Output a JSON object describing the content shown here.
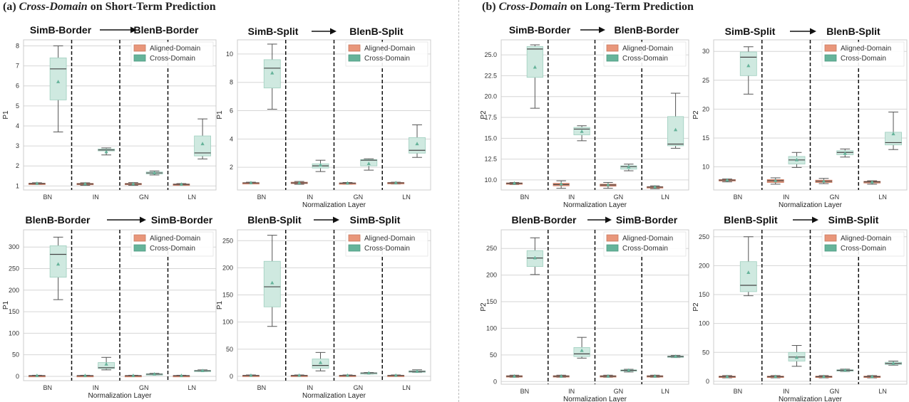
{
  "panels": [
    {
      "prefix": "(a) ",
      "emph": "Cross-Domain",
      "suffix": " on Short-Term Prediction"
    },
    {
      "prefix": "(b) ",
      "emph": "Cross-Domain",
      "suffix": " on Long-Term Prediction"
    }
  ],
  "colors": {
    "aligned": "#e8967a",
    "cross": "#66b39a",
    "cross_box": "#cfe9e0",
    "grid": "#d6d6d6",
    "axes": "#cccccc"
  },
  "chart_data": [
    {
      "id": "a1",
      "type": "box",
      "src": "SimB-Border",
      "dst": "BlenB-Border",
      "ylabel": "P1",
      "xlabel": "",
      "ylim": [
        0.8,
        8.3
      ],
      "yticks": [
        1,
        2,
        3,
        4,
        5,
        6,
        7,
        8
      ],
      "categories": [
        "BN",
        "IN",
        "GN",
        "LN"
      ],
      "series": [
        {
          "name": "Aligned-Domain",
          "boxes": [
            [
              1.08,
              1.11,
              1.12,
              1.14,
              1.16
            ],
            [
              1.03,
              1.07,
              1.1,
              1.13,
              1.16
            ],
            [
              1.03,
              1.07,
              1.1,
              1.13,
              1.17
            ],
            [
              1.03,
              1.06,
              1.08,
              1.1,
              1.12
            ]
          ],
          "means": [
            1.12,
            1.1,
            1.1,
            1.08
          ]
        },
        {
          "name": "Cross-Domain",
          "boxes": [
            [
              3.7,
              5.3,
              6.85,
              7.4,
              8.0
            ],
            [
              2.55,
              2.75,
              2.8,
              2.85,
              2.9
            ],
            [
              1.55,
              1.6,
              1.65,
              1.7,
              1.75
            ],
            [
              2.35,
              2.5,
              2.65,
              3.5,
              4.35
            ]
          ],
          "means": [
            6.2,
            2.7,
            1.65,
            3.1
          ]
        }
      ]
    },
    {
      "id": "a2",
      "type": "box",
      "src": "SimB-Split",
      "dst": "BlenB-Split",
      "ylabel": "P1",
      "xlabel": "Normalization Layer",
      "ylim": [
        0.4,
        11
      ],
      "yticks": [
        2,
        4,
        6,
        8,
        10
      ],
      "categories": [
        "BN",
        "IN",
        "GN",
        "LN"
      ],
      "series": [
        {
          "name": "Aligned-Domain",
          "boxes": [
            [
              0.85,
              0.88,
              0.9,
              0.92,
              0.95
            ],
            [
              0.8,
              0.85,
              0.9,
              0.95,
              1.0
            ],
            [
              0.8,
              0.85,
              0.88,
              0.9,
              0.93
            ],
            [
              0.82,
              0.86,
              0.9,
              0.93,
              0.95
            ]
          ],
          "means": [
            0.9,
            0.9,
            0.88,
            0.9
          ]
        },
        {
          "name": "Cross-Domain",
          "boxes": [
            [
              6.1,
              7.6,
              9.0,
              9.6,
              10.7
            ],
            [
              1.7,
              1.95,
              2.1,
              2.25,
              2.5
            ],
            [
              1.8,
              2.1,
              2.5,
              2.55,
              2.6
            ],
            [
              2.7,
              3.0,
              3.2,
              4.1,
              5.0
            ]
          ],
          "means": [
            8.65,
            2.15,
            2.25,
            3.65
          ]
        }
      ]
    },
    {
      "id": "a3",
      "type": "box",
      "src": "BlenB-Border",
      "dst": "SimB-Border",
      "ylabel": "P1",
      "xlabel": "Normalization Layer",
      "ylim": [
        -10,
        340
      ],
      "yticks": [
        0,
        50,
        100,
        150,
        200,
        250,
        300
      ],
      "categories": [
        "BN",
        "IN",
        "GN",
        "LN"
      ],
      "series": [
        {
          "name": "Aligned-Domain",
          "boxes": [
            [
              0.5,
              1,
              1.5,
              2,
              2.5
            ],
            [
              0.5,
              1,
              1.5,
              2,
              2.5
            ],
            [
              0.5,
              1,
              1.5,
              2,
              2.5
            ],
            [
              0.5,
              1,
              1.5,
              2,
              2.5
            ]
          ],
          "means": [
            1.5,
            1.5,
            1.5,
            1.5
          ]
        },
        {
          "name": "Cross-Domain",
          "boxes": [
            [
              178,
              230,
              283,
              303,
              323
            ],
            [
              15,
              18,
              20,
              32,
              44
            ],
            [
              3,
              4,
              5,
              6,
              7
            ],
            [
              11,
              12,
              13,
              14,
              15
            ]
          ],
          "means": [
            260,
            28,
            5,
            13
          ]
        }
      ]
    },
    {
      "id": "a4",
      "type": "box",
      "src": "BlenB-Split",
      "dst": "SimB-Split",
      "ylabel": "P1",
      "xlabel": "Normalization Layer",
      "ylim": [
        -8,
        270
      ],
      "yticks": [
        0,
        50,
        100,
        150,
        200,
        250
      ],
      "categories": [
        "BN",
        "IN",
        "GN",
        "LN"
      ],
      "series": [
        {
          "name": "Aligned-Domain",
          "boxes": [
            [
              0.5,
              1,
              1.5,
              2,
              2.5
            ],
            [
              0.5,
              1,
              1.5,
              2,
              2.5
            ],
            [
              0.5,
              1,
              1.5,
              2,
              2.5
            ],
            [
              0.5,
              1,
              1.5,
              2,
              2.5
            ]
          ],
          "means": [
            1.5,
            1.5,
            1.5,
            1.5
          ]
        },
        {
          "name": "Cross-Domain",
          "boxes": [
            [
              92,
              128,
              165,
              212,
              260
            ],
            [
              10,
              15,
              20,
              32,
              44
            ],
            [
              4,
              5,
              6,
              6.5,
              7
            ],
            [
              7,
              8,
              9,
              10,
              12
            ]
          ],
          "means": [
            172,
            25,
            6,
            9
          ]
        }
      ]
    },
    {
      "id": "b1",
      "type": "box",
      "src": "SimB-Border",
      "dst": "BlenB-Border",
      "ylabel": "P2",
      "xlabel": "Normalization Layer",
      "ylim": [
        8.8,
        26.8
      ],
      "yticks": [
        10,
        12.5,
        15,
        17.5,
        20,
        22.5,
        25
      ],
      "yticklabels": [
        "10.0",
        "12.5",
        "15.0",
        "17.5",
        "20.0",
        "22.5",
        "25.0"
      ],
      "categories": [
        "BN",
        "IN",
        "GN",
        "LN"
      ],
      "series": [
        {
          "name": "Aligned-Domain",
          "boxes": [
            [
              9.45,
              9.55,
              9.6,
              9.65,
              9.7
            ],
            [
              9.0,
              9.3,
              9.45,
              9.6,
              9.9
            ],
            [
              9.0,
              9.25,
              9.4,
              9.5,
              9.7
            ],
            [
              8.95,
              9.05,
              9.15,
              9.2,
              9.3
            ]
          ],
          "means": [
            9.6,
            9.5,
            9.4,
            9.15
          ]
        },
        {
          "name": "Cross-Domain",
          "boxes": [
            [
              18.6,
              22.3,
              25.7,
              26.0,
              26.2
            ],
            [
              14.7,
              15.4,
              16.1,
              16.3,
              16.5
            ],
            [
              11.1,
              11.3,
              11.6,
              11.7,
              11.9
            ],
            [
              13.8,
              14.1,
              14.3,
              17.6,
              20.4
            ]
          ],
          "means": [
            23.5,
            15.8,
            11.55,
            16.0
          ]
        }
      ]
    },
    {
      "id": "b2",
      "type": "box",
      "src": "SimB-Split",
      "dst": "BlenB-Split",
      "ylabel": "P2",
      "xlabel": "Normalization Layer",
      "ylim": [
        6,
        32
      ],
      "yticks": [
        10,
        15,
        20,
        25,
        30
      ],
      "categories": [
        "BN",
        "IN",
        "GN",
        "LN"
      ],
      "series": [
        {
          "name": "Aligned-Domain",
          "boxes": [
            [
              7.4,
              7.6,
              7.7,
              7.8,
              7.9
            ],
            [
              7.0,
              7.3,
              7.6,
              7.8,
              8.1
            ],
            [
              7.1,
              7.3,
              7.5,
              7.7,
              8.0
            ],
            [
              7.0,
              7.2,
              7.4,
              7.5,
              7.6
            ]
          ],
          "means": [
            7.7,
            7.6,
            7.5,
            7.35
          ]
        },
        {
          "name": "Cross-Domain",
          "boxes": [
            [
              22.6,
              25.8,
              29.0,
              29.9,
              30.8
            ],
            [
              9.9,
              10.5,
              11.2,
              11.8,
              12.5
            ],
            [
              11.7,
              12.1,
              12.5,
              12.8,
              13.1
            ],
            [
              13.0,
              13.8,
              14.2,
              16.0,
              19.5
            ]
          ],
          "means": [
            27.5,
            11.2,
            12.3,
            15.7
          ]
        }
      ]
    },
    {
      "id": "b3",
      "type": "box",
      "src": "BlenB-Border",
      "dst": "SimB-Border",
      "ylabel": "P2",
      "xlabel": "Normalization Layer",
      "ylim": [
        -5,
        285
      ],
      "yticks": [
        0,
        50,
        100,
        150,
        200,
        250
      ],
      "categories": [
        "BN",
        "IN",
        "GN",
        "LN"
      ],
      "series": [
        {
          "name": "Aligned-Domain",
          "boxes": [
            [
              8,
              9,
              10,
              11,
              12
            ],
            [
              8,
              9,
              10,
              11,
              12
            ],
            [
              8,
              9,
              10,
              11,
              12
            ],
            [
              8,
              9,
              10,
              11,
              12
            ]
          ],
          "means": [
            10,
            10,
            10,
            10
          ]
        },
        {
          "name": "Cross-Domain",
          "boxes": [
            [
              201,
              216,
              232,
              246,
              270
            ],
            [
              44,
              47,
              52,
              64,
              83
            ],
            [
              18,
              20,
              21,
              22,
              23
            ],
            [
              45,
              46,
              47,
              48,
              49
            ]
          ],
          "means": [
            232,
            58,
            21,
            47
          ]
        }
      ]
    },
    {
      "id": "b4",
      "type": "box",
      "src": "BlenB-Split",
      "dst": "SimB-Split",
      "ylabel": "P2",
      "xlabel": "Normalization Layer",
      "ylim": [
        -5,
        262
      ],
      "yticks": [
        0,
        50,
        100,
        150,
        200,
        250
      ],
      "categories": [
        "BN",
        "IN",
        "GN",
        "LN"
      ],
      "series": [
        {
          "name": "Aligned-Domain",
          "boxes": [
            [
              6,
              7,
              8,
              9,
              10
            ],
            [
              6,
              7,
              8,
              9,
              10
            ],
            [
              6,
              7,
              8,
              9,
              10
            ],
            [
              6,
              7,
              8,
              9,
              10
            ]
          ],
          "means": [
            8,
            8,
            8,
            8
          ]
        },
        {
          "name": "Cross-Domain",
          "boxes": [
            [
              148,
              155,
              166,
              207,
              250
            ],
            [
              26,
              35,
              42,
              50,
              62
            ],
            [
              17,
              18,
              19,
              20,
              21
            ],
            [
              28,
              29,
              31,
              33,
              35
            ]
          ],
          "means": [
            188,
            41,
            19,
            31
          ]
        }
      ]
    }
  ]
}
